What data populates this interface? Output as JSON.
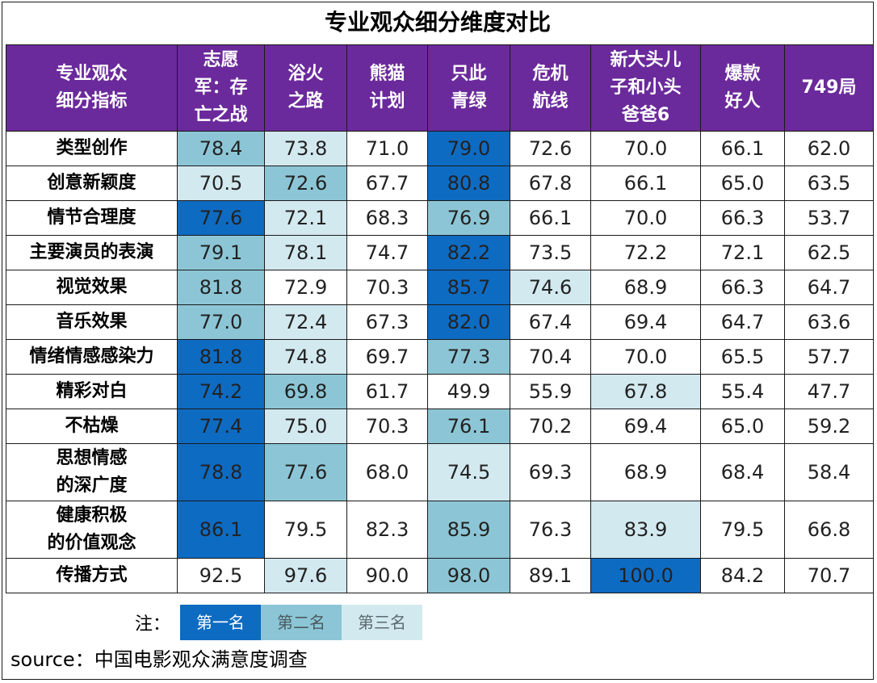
{
  "chart_data": {
    "type": "table",
    "title": "专业观众细分维度对比",
    "header_label_lines": [
      "专业观众",
      "细分指标"
    ],
    "columns": [
      {
        "name": "志愿军：存亡之战",
        "lines": [
          "志愿",
          "军：存",
          "亡之战"
        ]
      },
      {
        "name": "浴火之路",
        "lines": [
          "浴火",
          "之路"
        ]
      },
      {
        "name": "熊猫计划",
        "lines": [
          "熊猫",
          "计划"
        ]
      },
      {
        "name": "只此青绿",
        "lines": [
          "只此",
          "青绿"
        ]
      },
      {
        "name": "危机航线",
        "lines": [
          "危机",
          "航线"
        ]
      },
      {
        "name": "新大头儿子和小头爸爸6",
        "lines": [
          "新大头儿",
          "子和小头",
          "爸爸6"
        ]
      },
      {
        "name": "爆款好人",
        "lines": [
          "爆款",
          "好人"
        ]
      },
      {
        "name": "749局",
        "lines": [
          "749局"
        ]
      }
    ],
    "rows": [
      {
        "label": "类型创作",
        "lines": [
          "类型创作"
        ],
        "values": [
          "78.4",
          "73.8",
          "71.0",
          "79.0",
          "72.6",
          "70.0",
          "66.1",
          "62.0"
        ],
        "ranks": [
          2,
          3,
          0,
          1,
          0,
          0,
          0,
          0
        ]
      },
      {
        "label": "创意新颖度",
        "lines": [
          "创意新颖度"
        ],
        "values": [
          "70.5",
          "72.6",
          "67.7",
          "80.8",
          "67.8",
          "66.1",
          "65.0",
          "63.5"
        ],
        "ranks": [
          3,
          2,
          0,
          1,
          0,
          0,
          0,
          0
        ]
      },
      {
        "label": "情节合理度",
        "lines": [
          "情节合理度"
        ],
        "values": [
          "77.6",
          "72.1",
          "68.3",
          "76.9",
          "66.1",
          "70.0",
          "66.3",
          "53.7"
        ],
        "ranks": [
          1,
          3,
          0,
          2,
          0,
          0,
          0,
          0
        ]
      },
      {
        "label": "主要演员的表演",
        "lines": [
          "主要演员的表演"
        ],
        "values": [
          "79.1",
          "78.1",
          "74.7",
          "82.2",
          "73.5",
          "72.2",
          "72.1",
          "62.5"
        ],
        "ranks": [
          2,
          3,
          0,
          1,
          0,
          0,
          0,
          0
        ]
      },
      {
        "label": "视觉效果",
        "lines": [
          "视觉效果"
        ],
        "values": [
          "81.8",
          "72.9",
          "70.3",
          "85.7",
          "74.6",
          "68.9",
          "66.3",
          "64.7"
        ],
        "ranks": [
          2,
          0,
          0,
          1,
          3,
          0,
          0,
          0
        ]
      },
      {
        "label": "音乐效果",
        "lines": [
          "音乐效果"
        ],
        "values": [
          "77.0",
          "72.4",
          "67.3",
          "82.0",
          "67.4",
          "69.4",
          "64.7",
          "63.6"
        ],
        "ranks": [
          2,
          3,
          0,
          1,
          0,
          0,
          0,
          0
        ]
      },
      {
        "label": "情绪情感感染力",
        "lines": [
          "情绪情感感染力"
        ],
        "values": [
          "81.8",
          "74.8",
          "69.7",
          "77.3",
          "70.4",
          "70.0",
          "65.5",
          "57.7"
        ],
        "ranks": [
          1,
          3,
          0,
          2,
          0,
          0,
          0,
          0
        ]
      },
      {
        "label": "精彩对白",
        "lines": [
          "精彩对白"
        ],
        "values": [
          "74.2",
          "69.8",
          "61.7",
          "49.9",
          "55.9",
          "67.8",
          "55.4",
          "47.7"
        ],
        "ranks": [
          1,
          2,
          0,
          0,
          0,
          3,
          0,
          0
        ]
      },
      {
        "label": "不枯燥",
        "lines": [
          "不枯燥"
        ],
        "values": [
          "77.4",
          "75.0",
          "70.3",
          "76.1",
          "70.2",
          "69.4",
          "65.0",
          "59.2"
        ],
        "ranks": [
          1,
          3,
          0,
          2,
          0,
          0,
          0,
          0
        ]
      },
      {
        "label": "思想情感的深广度",
        "lines": [
          "思想情感",
          "的深广度"
        ],
        "values": [
          "78.8",
          "77.6",
          "68.0",
          "74.5",
          "69.3",
          "68.9",
          "68.4",
          "58.4"
        ],
        "ranks": [
          1,
          2,
          0,
          3,
          0,
          0,
          0,
          0
        ]
      },
      {
        "label": "健康积极的价值观念",
        "lines": [
          "健康积极",
          "的价值观念"
        ],
        "values": [
          "86.1",
          "79.5",
          "82.3",
          "85.9",
          "76.3",
          "83.9",
          "79.5",
          "66.8"
        ],
        "ranks": [
          1,
          0,
          0,
          2,
          0,
          3,
          0,
          0
        ]
      },
      {
        "label": "传播方式",
        "lines": [
          "传播方式"
        ],
        "values": [
          "92.5",
          "97.6",
          "90.0",
          "98.0",
          "89.1",
          "100.0",
          "84.2",
          "70.7"
        ],
        "ranks": [
          0,
          3,
          0,
          2,
          0,
          1,
          0,
          0
        ]
      }
    ],
    "legend": {
      "prefix": "注：",
      "items": [
        "第一名",
        "第二名",
        "第三名"
      ]
    },
    "source": "source：中国电影观众满意度调查"
  },
  "colors": {
    "header_bg": "#6b2a9b",
    "first": "#0e6bc2",
    "second": "#8cc6d6",
    "third": "#d3e9f0"
  }
}
